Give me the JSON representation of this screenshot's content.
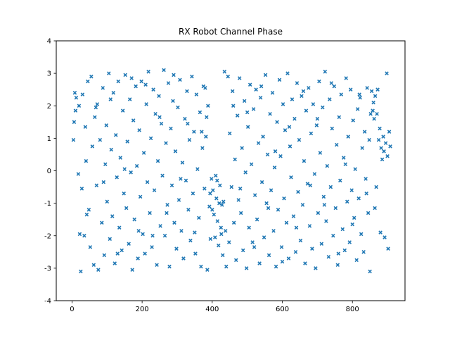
{
  "chart_data": {
    "type": "scatter",
    "title": "RX Robot Channel Phase",
    "xlabel": "",
    "ylabel": "",
    "xlim": [
      -45,
      950
    ],
    "ylim": [
      -4,
      4
    ],
    "xticks": [
      0,
      200,
      400,
      600,
      800
    ],
    "yticks": [
      -4,
      -3,
      -2,
      -1,
      0,
      1,
      2,
      3,
      4
    ],
    "grid": false,
    "marker": "x",
    "color": "#1f77b4",
    "series": [
      {
        "name": "",
        "points": [
          [
            4,
            0.95
          ],
          [
            6,
            1.5
          ],
          [
            8,
            2.4
          ],
          [
            10,
            1.85
          ],
          [
            12,
            2.25
          ],
          [
            18,
            -0.1
          ],
          [
            22,
            -1.95
          ],
          [
            25,
            -3.1
          ],
          [
            28,
            -0.55
          ],
          [
            30,
            2.35
          ],
          [
            35,
            -2.0
          ],
          [
            38,
            1.35
          ],
          [
            40,
            0.3
          ],
          [
            45,
            2.75
          ],
          [
            48,
            -1.2
          ],
          [
            52,
            -2.35
          ],
          [
            55,
            2.9
          ],
          [
            58,
            0.75
          ],
          [
            62,
            -2.9
          ],
          [
            65,
            1.65
          ],
          [
            70,
            -0.45
          ],
          [
            72,
            2.05
          ],
          [
            75,
            -3.05
          ],
          [
            80,
            0.95
          ],
          [
            85,
            -1.6
          ],
          [
            88,
            2.55
          ],
          [
            92,
            -2.6
          ],
          [
            95,
            0.2
          ],
          [
            98,
            1.4
          ],
          [
            100,
            -0.95
          ],
          [
            105,
            3.0
          ],
          [
            108,
            -2.1
          ],
          [
            112,
            0.65
          ],
          [
            115,
            -1.4
          ],
          [
            118,
            2.4
          ],
          [
            122,
            -2.85
          ],
          [
            125,
            1.1
          ],
          [
            128,
            -0.2
          ],
          [
            132,
            2.75
          ],
          [
            135,
            -1.75
          ],
          [
            138,
            0.4
          ],
          [
            142,
            -2.45
          ],
          [
            145,
            1.85
          ],
          [
            148,
            -0.7
          ],
          [
            152,
            2.95
          ],
          [
            155,
            -1.15
          ],
          [
            158,
            0.9
          ],
          [
            162,
            -2.25
          ],
          [
            165,
            2.2
          ],
          [
            168,
            -0.05
          ],
          [
            172,
            -3.05
          ],
          [
            175,
            1.55
          ],
          [
            178,
            -1.5
          ],
          [
            182,
            2.6
          ],
          [
            185,
            0.15
          ],
          [
            188,
            -2.7
          ],
          [
            192,
            1.25
          ],
          [
            195,
            -0.8
          ],
          [
            198,
            2.75
          ],
          [
            202,
            -1.95
          ],
          [
            205,
            0.55
          ],
          [
            208,
            -2.55
          ],
          [
            212,
            2.05
          ],
          [
            215,
            -0.35
          ],
          [
            218,
            3.05
          ],
          [
            222,
            -1.3
          ],
          [
            225,
            1.0
          ],
          [
            228,
            -2.35
          ],
          [
            232,
            2.5
          ],
          [
            235,
            -0.6
          ],
          [
            238,
            1.75
          ],
          [
            242,
            -2.9
          ],
          [
            245,
            0.3
          ],
          [
            248,
            2.3
          ],
          [
            252,
            -1.7
          ],
          [
            255,
            1.45
          ],
          [
            258,
            -0.15
          ],
          [
            262,
            3.1
          ],
          [
            265,
            -2.0
          ],
          [
            268,
            0.85
          ],
          [
            272,
            -1.05
          ],
          [
            275,
            2.7
          ],
          [
            278,
            -2.95
          ],
          [
            282,
            1.3
          ],
          [
            285,
            -0.45
          ],
          [
            288,
            2.15
          ],
          [
            292,
            -1.6
          ],
          [
            295,
            0.6
          ],
          [
            298,
            -2.4
          ],
          [
            302,
            1.95
          ],
          [
            305,
            -0.9
          ],
          [
            308,
            2.8
          ],
          [
            312,
            -1.85
          ],
          [
            315,
            0.25
          ],
          [
            318,
            -2.7
          ],
          [
            322,
            1.6
          ],
          [
            325,
            -0.3
          ],
          [
            328,
            2.45
          ],
          [
            332,
            -1.2
          ],
          [
            335,
            0.95
          ],
          [
            338,
            -2.15
          ],
          [
            342,
            2.9
          ],
          [
            345,
            -0.7
          ],
          [
            348,
            1.2
          ],
          [
            352,
            -2.55
          ],
          [
            355,
            2.35
          ],
          [
            358,
            0.05
          ],
          [
            362,
            -1.45
          ],
          [
            365,
            1.8
          ],
          [
            368,
            -2.95
          ],
          [
            372,
            0.7
          ],
          [
            375,
            2.6
          ],
          [
            378,
            -0.55
          ],
          [
            382,
            1.05
          ],
          [
            386,
            -3.05
          ],
          [
            388,
            2.0
          ],
          [
            392,
            -1.1
          ],
          [
            395,
            -2.1
          ],
          [
            398,
            -0.25
          ],
          [
            402,
            -0.6
          ],
          [
            405,
            -1.35
          ],
          [
            408,
            -2.05
          ],
          [
            410,
            -0.15
          ],
          [
            412,
            -0.85
          ],
          [
            415,
            -1.55
          ],
          [
            418,
            -2.3
          ],
          [
            420,
            -1.0
          ],
          [
            422,
            -0.45
          ],
          [
            425,
            -1.75
          ],
          [
            428,
            -1.05
          ],
          [
            430,
            -2.6
          ],
          [
            432,
            -0.95
          ],
          [
            435,
            3.05
          ],
          [
            438,
            -1.85
          ],
          [
            440,
            -2.95
          ],
          [
            445,
            2.9
          ],
          [
            448,
            -2.2
          ],
          [
            450,
            1.15
          ],
          [
            455,
            -0.5
          ],
          [
            458,
            2.45
          ],
          [
            462,
            -1.6
          ],
          [
            465,
            0.35
          ],
          [
            468,
            -2.75
          ],
          [
            472,
            1.7
          ],
          [
            475,
            -0.9
          ],
          [
            478,
            2.85
          ],
          [
            482,
            -1.3
          ],
          [
            485,
            0.7
          ],
          [
            488,
            -2.45
          ],
          [
            492,
            2.15
          ],
          [
            495,
            -0.05
          ],
          [
            498,
            -3.0
          ],
          [
            502,
            1.35
          ],
          [
            505,
            -1.75
          ],
          [
            508,
            2.65
          ],
          [
            512,
            0.2
          ],
          [
            515,
            -2.2
          ],
          [
            518,
            1.9
          ],
          [
            522,
            -0.75
          ],
          [
            525,
            2.5
          ],
          [
            528,
            -1.5
          ],
          [
            532,
            0.85
          ],
          [
            535,
            -2.85
          ],
          [
            538,
            2.25
          ],
          [
            542,
            -0.35
          ],
          [
            545,
            1.05
          ],
          [
            548,
            -2.05
          ],
          [
            552,
            2.95
          ],
          [
            555,
            -1.0
          ],
          [
            558,
            0.5
          ],
          [
            562,
            -2.6
          ],
          [
            565,
            1.75
          ],
          [
            568,
            -0.6
          ],
          [
            572,
            2.4
          ],
          [
            575,
            -1.85
          ],
          [
            578,
            0.1
          ],
          [
            582,
            -2.95
          ],
          [
            585,
            1.5
          ],
          [
            588,
            -1.2
          ],
          [
            592,
            2.8
          ],
          [
            595,
            0.45
          ],
          [
            598,
            -2.35
          ],
          [
            602,
            2.05
          ],
          [
            605,
            -0.85
          ],
          [
            608,
            1.25
          ],
          [
            612,
            -1.6
          ],
          [
            615,
            3.0
          ],
          [
            618,
            -2.7
          ],
          [
            622,
            0.75
          ],
          [
            625,
            -0.2
          ],
          [
            628,
            2.2
          ],
          [
            632,
            -1.4
          ],
          [
            635,
            1.6
          ],
          [
            638,
            -2.5
          ],
          [
            642,
            2.7
          ],
          [
            645,
            -0.65
          ],
          [
            648,
            0.95
          ],
          [
            652,
            -2.15
          ],
          [
            655,
            2.3
          ],
          [
            658,
            -1.05
          ],
          [
            662,
            0.3
          ],
          [
            665,
            -2.85
          ],
          [
            668,
            1.85
          ],
          [
            672,
            -0.4
          ],
          [
            675,
            2.55
          ],
          [
            678,
            -1.7
          ],
          [
            682,
            1.15
          ],
          [
            685,
            -2.4
          ],
          [
            688,
            2.05
          ],
          [
            692,
            -0.1
          ],
          [
            695,
            -3.0
          ],
          [
            698,
            1.4
          ],
          [
            702,
            -1.3
          ],
          [
            705,
            2.75
          ],
          [
            708,
            0.55
          ],
          [
            712,
            -2.25
          ],
          [
            715,
            1.95
          ],
          [
            718,
            -0.8
          ],
          [
            722,
            3.05
          ],
          [
            725,
            -1.55
          ],
          [
            728,
            0.15
          ],
          [
            732,
            -2.65
          ],
          [
            735,
            2.2
          ],
          [
            738,
            -0.5
          ],
          [
            742,
            1.3
          ],
          [
            745,
            -2.0
          ],
          [
            748,
            2.6
          ],
          [
            752,
            -1.15
          ],
          [
            755,
            0.8
          ],
          [
            758,
            -2.9
          ],
          [
            762,
            1.65
          ],
          [
            765,
            -0.3
          ],
          [
            768,
            2.35
          ],
          [
            772,
            -1.8
          ],
          [
            775,
            0.4
          ],
          [
            778,
            -2.45
          ],
          [
            782,
            2.85
          ],
          [
            785,
            -0.95
          ],
          [
            788,
            1.05
          ],
          [
            792,
            -2.2
          ],
          [
            795,
            2.5
          ],
          [
            798,
            -0.6
          ],
          [
            802,
            1.55
          ],
          [
            805,
            -1.45
          ],
          [
            808,
            0.05
          ],
          [
            812,
            -2.75
          ],
          [
            815,
            1.9
          ],
          [
            818,
            -0.85
          ],
          [
            822,
            2.25
          ],
          [
            825,
            -1.95
          ],
          [
            828,
            0.7
          ],
          [
            832,
            -2.5
          ],
          [
            835,
            1.2
          ],
          [
            838,
            -0.25
          ],
          [
            842,
            2.55
          ],
          [
            845,
            -1.3
          ],
          [
            848,
            0.95
          ],
          [
            850,
            -3.1
          ],
          [
            855,
            2.45
          ],
          [
            858,
            1.85
          ],
          [
            860,
            2.1
          ],
          [
            862,
            1.6
          ],
          [
            865,
            2.3
          ],
          [
            868,
            -0.5
          ],
          [
            870,
            1.75
          ],
          [
            872,
            2.5
          ],
          [
            875,
            0.95
          ],
          [
            878,
            1.3
          ],
          [
            880,
            -1.9
          ],
          [
            882,
            0.7
          ],
          [
            885,
            0.35
          ],
          [
            888,
            1.05
          ],
          [
            890,
            0.6
          ],
          [
            892,
            -2.05
          ],
          [
            895,
            0.85
          ],
          [
            898,
            3.0
          ],
          [
            900,
            0.45
          ],
          [
            902,
            -2.4
          ],
          [
            905,
            1.2
          ],
          [
            908,
            0.75
          ],
          [
            20,
            2.0
          ],
          [
            42,
            -1.35
          ],
          [
            68,
            1.95
          ],
          [
            90,
            -0.35
          ],
          [
            110,
            2.2
          ],
          [
            130,
            -2.55
          ],
          [
            150,
            0.05
          ],
          [
            170,
            2.85
          ],
          [
            190,
            -1.85
          ],
          [
            210,
            2.65
          ],
          [
            230,
            -2.0
          ],
          [
            250,
            1.65
          ],
          [
            270,
            -1.3
          ],
          [
            290,
            2.95
          ],
          [
            310,
            -0.25
          ],
          [
            330,
            1.45
          ],
          [
            350,
            -1.9
          ],
          [
            370,
            1.2
          ],
          [
            380,
            2.55
          ],
          [
            384,
            1.65
          ],
          [
            394,
            -0.7
          ],
          [
            400,
            -1.2
          ],
          [
            414,
            -0.3
          ],
          [
            426,
            -1.95
          ],
          [
            460,
            2.0
          ],
          [
            480,
            -0.55
          ],
          [
            500,
            1.8
          ],
          [
            520,
            -2.35
          ],
          [
            540,
            2.6
          ],
          [
            560,
            -1.15
          ],
          [
            580,
            0.6
          ],
          [
            600,
            -2.8
          ],
          [
            620,
            1.35
          ],
          [
            640,
            -1.75
          ],
          [
            660,
            2.45
          ],
          [
            680,
            -0.45
          ],
          [
            700,
            1.6
          ],
          [
            720,
            -1.05
          ],
          [
            740,
            2.7
          ],
          [
            760,
            -2.55
          ],
          [
            780,
            0.2
          ],
          [
            800,
            -1.65
          ],
          [
            820,
            2.35
          ],
          [
            840,
            -0.7
          ],
          [
            852,
            1.75
          ],
          [
            864,
            -1.15
          ]
        ]
      }
    ]
  }
}
